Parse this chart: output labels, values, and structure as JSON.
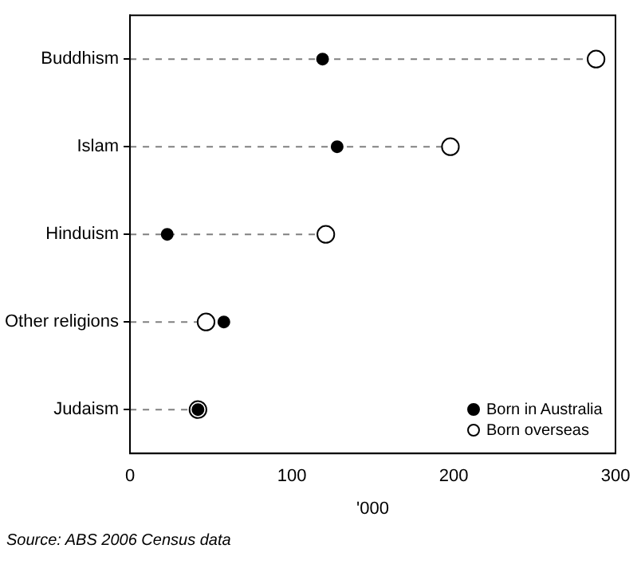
{
  "chart_data": {
    "type": "lollipop",
    "orientation": "horizontal",
    "xlabel": "'000",
    "categories": [
      "Buddhism",
      "Islam",
      "Hinduism",
      "Other religions",
      "Judaism"
    ],
    "series": [
      {
        "name": "Born in Australia",
        "color": "#000000",
        "values": [
          119,
          128,
          23,
          58,
          42
        ]
      },
      {
        "name": "Born overseas",
        "color": "#ffffff",
        "values": [
          288,
          198,
          121,
          47,
          42
        ]
      }
    ],
    "xlim": [
      0,
      300
    ],
    "xticks": [
      0,
      100,
      200,
      300
    ],
    "grid": false,
    "legend": "bottom right",
    "marker": "circle",
    "line_style": "dashed",
    "annotations": [
      "Source: ABS 2006 Census data"
    ]
  }
}
